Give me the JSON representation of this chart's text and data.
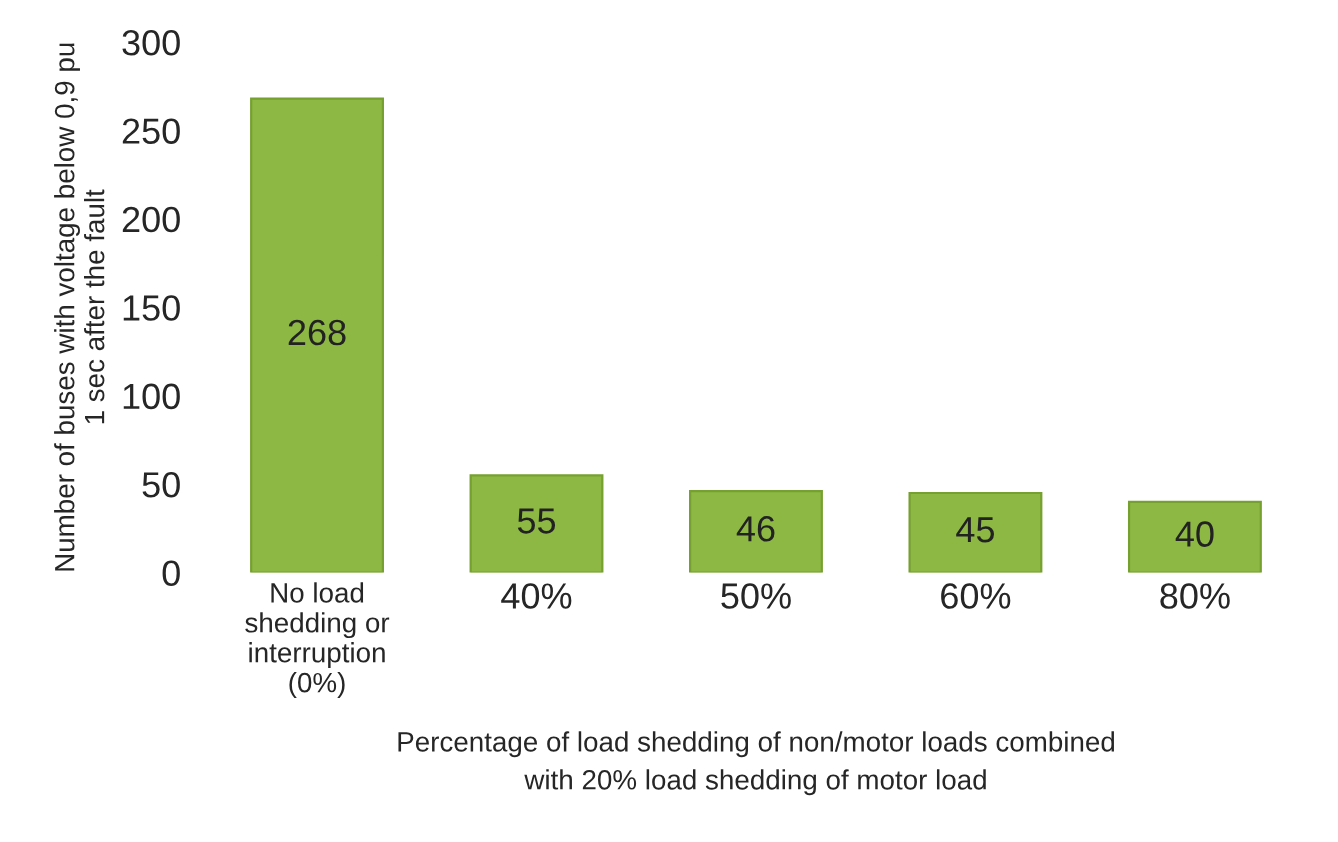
{
  "chart_data": {
    "type": "bar",
    "ylabel": "Number of buses with voltage below 0,9 pu\n1 sec after the fault",
    "xlabel": "Percentage of load shedding of non/motor loads combined\nwith 20% load shedding of motor load",
    "categories": [
      "No load\nshedding or\ninterruption\n(0%)",
      "40%",
      "50%",
      "60%",
      "80%"
    ],
    "values": [
      268,
      55,
      46,
      45,
      40
    ],
    "color": "#8db843",
    "ylim": [
      0,
      300
    ],
    "yticks": [
      0,
      50,
      100,
      150,
      200,
      250,
      300
    ],
    "data_labels": true,
    "grid": false
  }
}
